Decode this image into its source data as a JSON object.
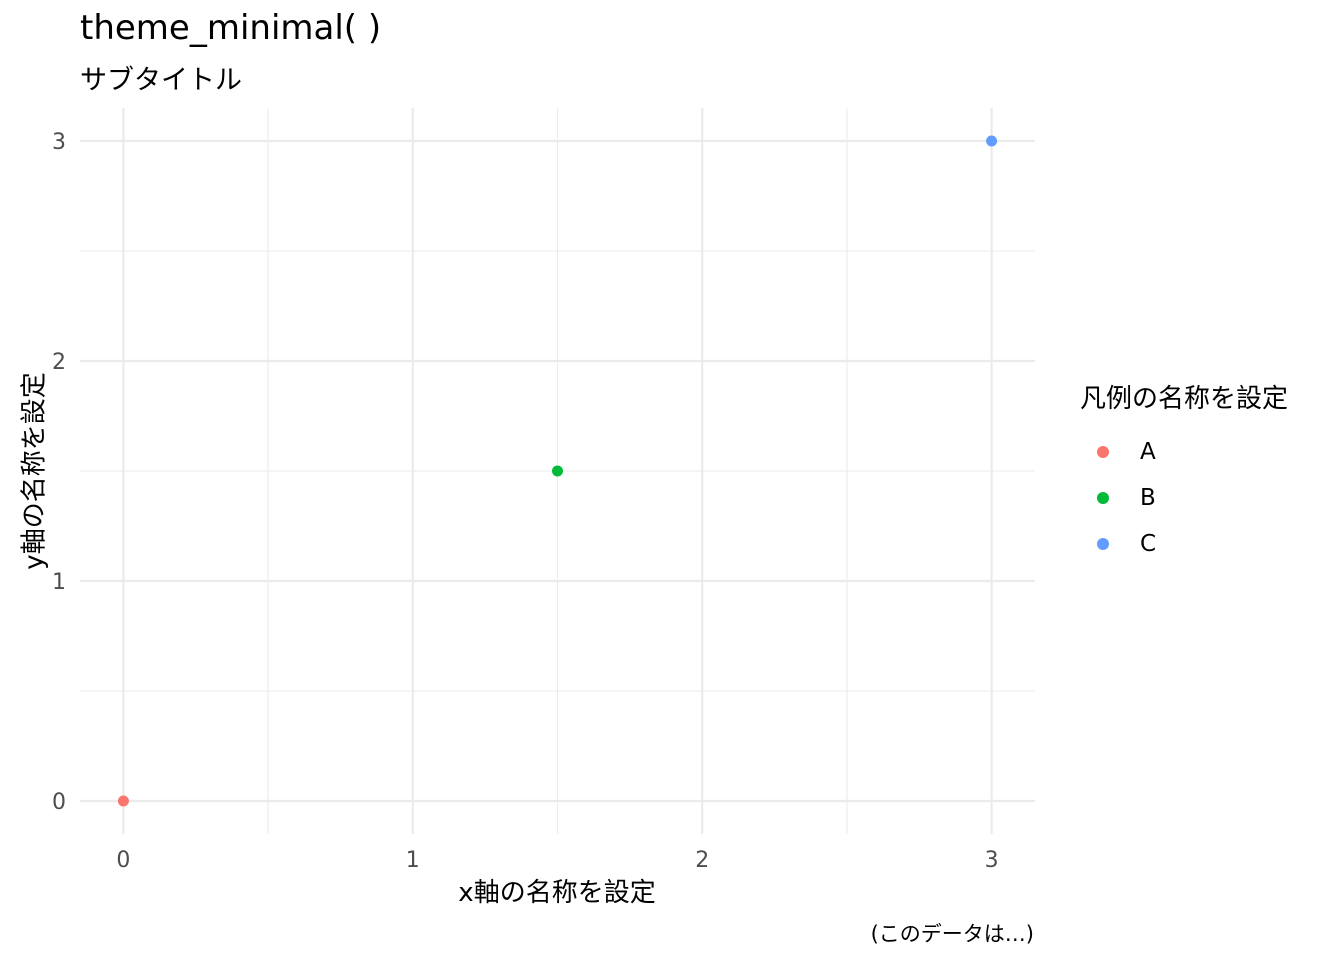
{
  "chart_data": {
    "type": "scatter",
    "title": "theme_minimal( )",
    "subtitle": "サブタイトル",
    "xlabel": "x軸の名称を設定",
    "ylabel": "y軸の名称を設定",
    "caption": "(このデータは…)",
    "xlim": [
      -0.15,
      3.15
    ],
    "ylim": [
      -0.15,
      3.15
    ],
    "x_ticks": [
      0,
      1,
      2,
      3
    ],
    "y_ticks": [
      0,
      1,
      2,
      3
    ],
    "x_minor": [
      0.5,
      1.5,
      2.5
    ],
    "y_minor": [
      0.5,
      1.5,
      2.5
    ],
    "grid": true,
    "legend": {
      "title": "凡例の名称を設定",
      "position": "right"
    },
    "series": [
      {
        "name": "A",
        "color": "#F8766D",
        "points": [
          {
            "x": 0,
            "y": 0
          }
        ]
      },
      {
        "name": "B",
        "color": "#00BA38",
        "points": [
          {
            "x": 1.5,
            "y": 1.5
          }
        ]
      },
      {
        "name": "C",
        "color": "#619CFF",
        "points": [
          {
            "x": 3,
            "y": 3
          }
        ]
      }
    ]
  }
}
